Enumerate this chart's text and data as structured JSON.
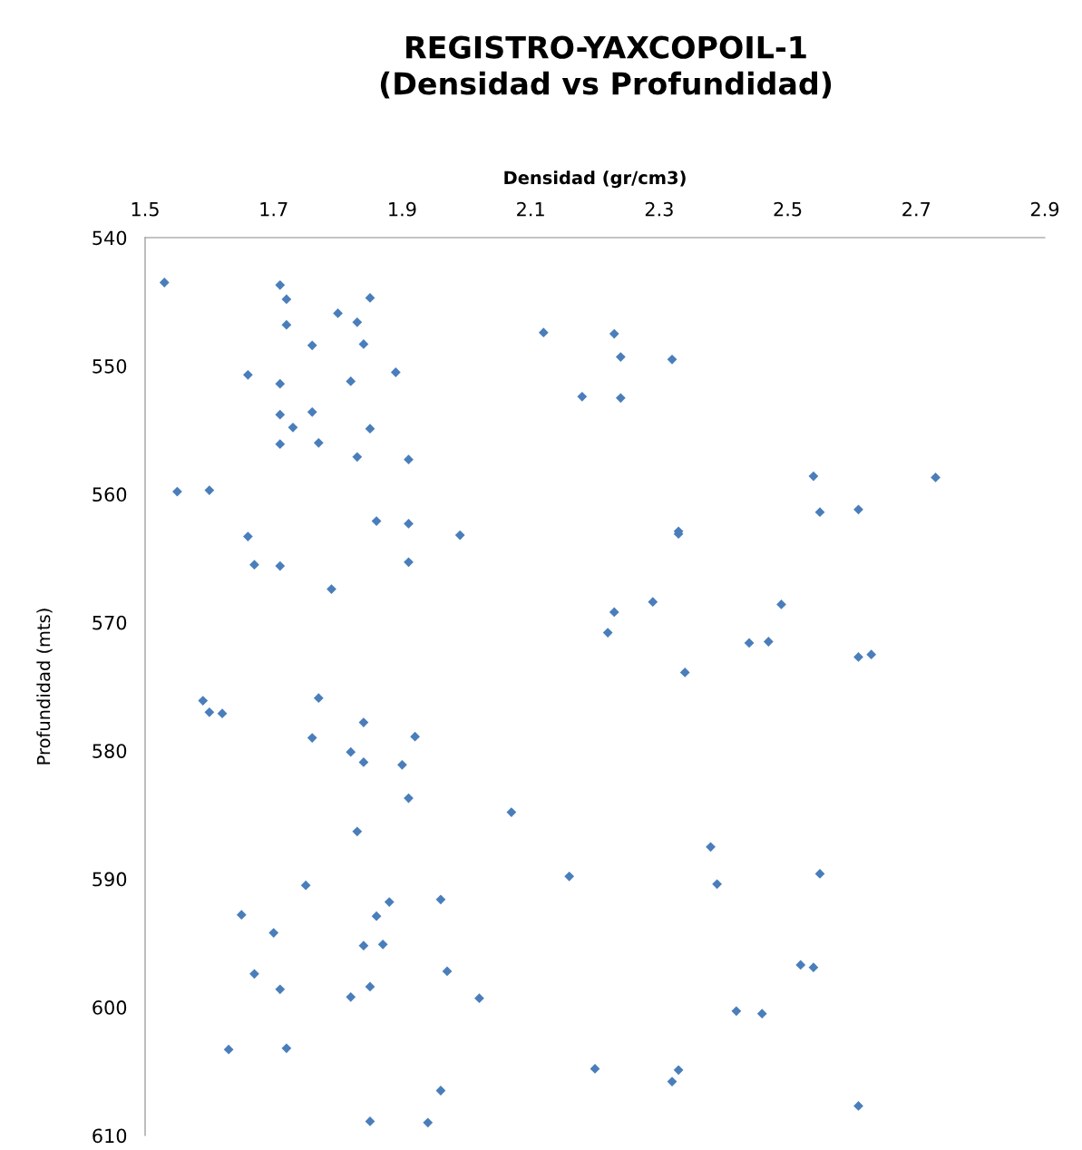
{
  "chart_data": {
    "type": "scatter",
    "title": "REGISTRO-YAXCOPOIL-1\n(Densidad vs Profundidad)",
    "xlabel": "Densidad (gr/cm3)",
    "ylabel": "Profundidad (mts)",
    "xlim": [
      1.5,
      2.9
    ],
    "xticks": [
      1.5,
      1.7,
      1.9,
      2.1,
      2.3,
      2.5,
      2.7,
      2.9
    ],
    "ylim": [
      610,
      540
    ],
    "yticks": [
      540,
      550,
      560,
      570,
      580,
      590,
      600,
      610
    ],
    "marker": "diamond",
    "grid": false,
    "legend": false,
    "series": [
      {
        "color": "#4a7ebb",
        "x": [
          1.53,
          1.71,
          1.72,
          1.85,
          1.8,
          1.72,
          1.83,
          2.12,
          2.23,
          1.76,
          1.84,
          2.24,
          2.32,
          1.66,
          1.89,
          1.71,
          1.82,
          2.18,
          2.24,
          1.71,
          1.76,
          1.73,
          1.85,
          1.71,
          1.77,
          1.83,
          1.91,
          2.54,
          2.73,
          1.55,
          1.6,
          2.55,
          2.61,
          1.86,
          1.91,
          1.66,
          1.99,
          2.33,
          2.33,
          1.67,
          1.71,
          1.91,
          1.79,
          2.29,
          2.49,
          2.23,
          2.22,
          2.44,
          2.47,
          2.61,
          2.63,
          2.34,
          1.59,
          1.77,
          1.6,
          1.62,
          1.84,
          1.76,
          1.92,
          1.82,
          1.84,
          1.9,
          1.91,
          2.07,
          1.83,
          2.38,
          2.16,
          2.55,
          2.39,
          1.75,
          1.88,
          1.96,
          1.65,
          1.86,
          1.7,
          1.84,
          1.87,
          2.52,
          2.54,
          1.67,
          1.97,
          1.71,
          1.85,
          1.82,
          2.02,
          2.42,
          2.46,
          1.63,
          1.72,
          2.2,
          2.33,
          2.32,
          1.96,
          2.61,
          1.85,
          1.94
        ],
        "values": [
          543.5,
          543.7,
          544.8,
          544.7,
          545.9,
          546.8,
          546.6,
          547.4,
          547.5,
          548.4,
          548.3,
          549.3,
          549.5,
          550.7,
          550.5,
          551.4,
          551.2,
          552.4,
          552.5,
          553.8,
          553.6,
          554.8,
          554.9,
          556.1,
          556.0,
          557.1,
          557.3,
          558.6,
          558.7,
          559.8,
          559.7,
          561.4,
          561.2,
          562.1,
          562.3,
          563.3,
          563.2,
          562.9,
          563.1,
          565.5,
          565.6,
          565.3,
          567.4,
          568.4,
          568.6,
          569.2,
          570.8,
          571.6,
          571.5,
          572.7,
          572.5,
          573.9,
          576.1,
          575.9,
          577.0,
          577.1,
          577.8,
          579.0,
          578.9,
          580.1,
          580.9,
          581.1,
          583.7,
          584.8,
          586.3,
          587.5,
          589.8,
          589.6,
          590.4,
          590.5,
          591.8,
          591.6,
          592.8,
          592.9,
          594.2,
          595.2,
          595.1,
          596.7,
          596.9,
          597.4,
          597.2,
          598.6,
          598.4,
          599.2,
          599.3,
          600.3,
          600.5,
          603.3,
          603.2,
          604.8,
          604.9,
          605.8,
          606.5,
          607.7,
          608.9,
          609.0
        ]
      }
    ]
  }
}
